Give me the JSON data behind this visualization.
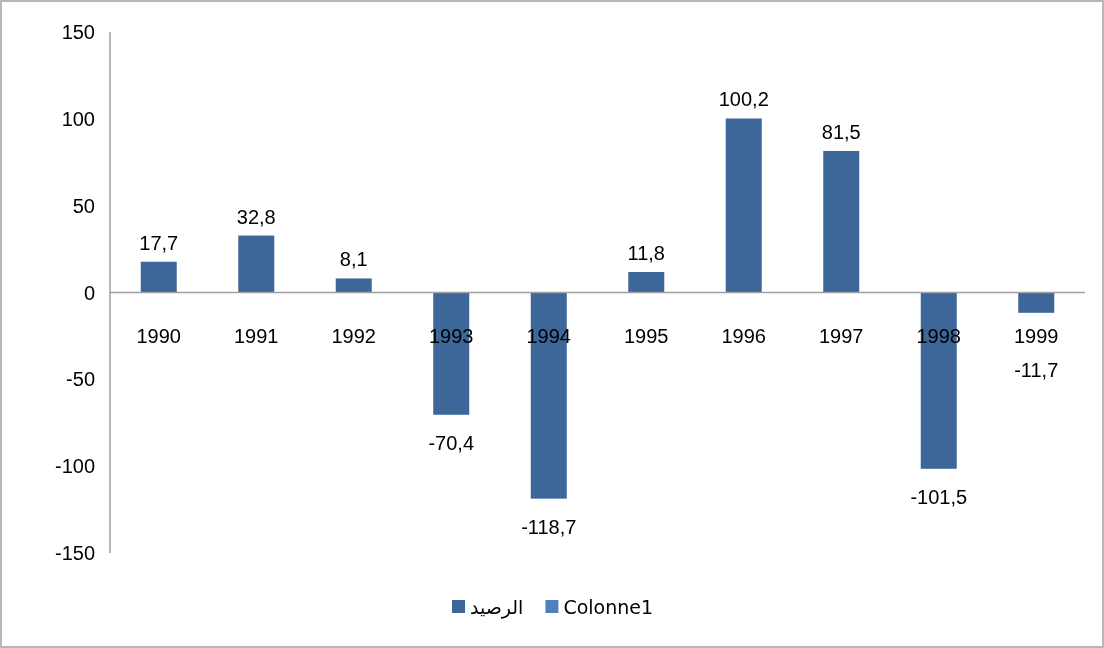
{
  "chart_data": {
    "type": "bar",
    "categories": [
      "1990",
      "1991",
      "1992",
      "1993",
      "1994",
      "1995",
      "1996",
      "1997",
      "1998",
      "1999"
    ],
    "series": [
      {
        "name": "الرصيد",
        "color": "#3d6699",
        "values": [
          17.7,
          32.8,
          8.1,
          -70.4,
          -118.7,
          11.8,
          100.2,
          81.5,
          -101.5,
          -11.7
        ],
        "value_labels": [
          "17,7",
          "32,8",
          "8,1",
          "-70,4",
          "-118,7",
          "11,8",
          "100,2",
          "81,5",
          "-101,5",
          "-11,7"
        ]
      },
      {
        "name": "Colonne1",
        "color": "#4f81bd",
        "values": [
          null,
          null,
          null,
          null,
          null,
          null,
          null,
          null,
          null,
          null
        ]
      }
    ],
    "ylim": [
      -150,
      150
    ],
    "yticks": [
      -150,
      -100,
      -50,
      0,
      50,
      100,
      150
    ],
    "legend": "bottom"
  }
}
